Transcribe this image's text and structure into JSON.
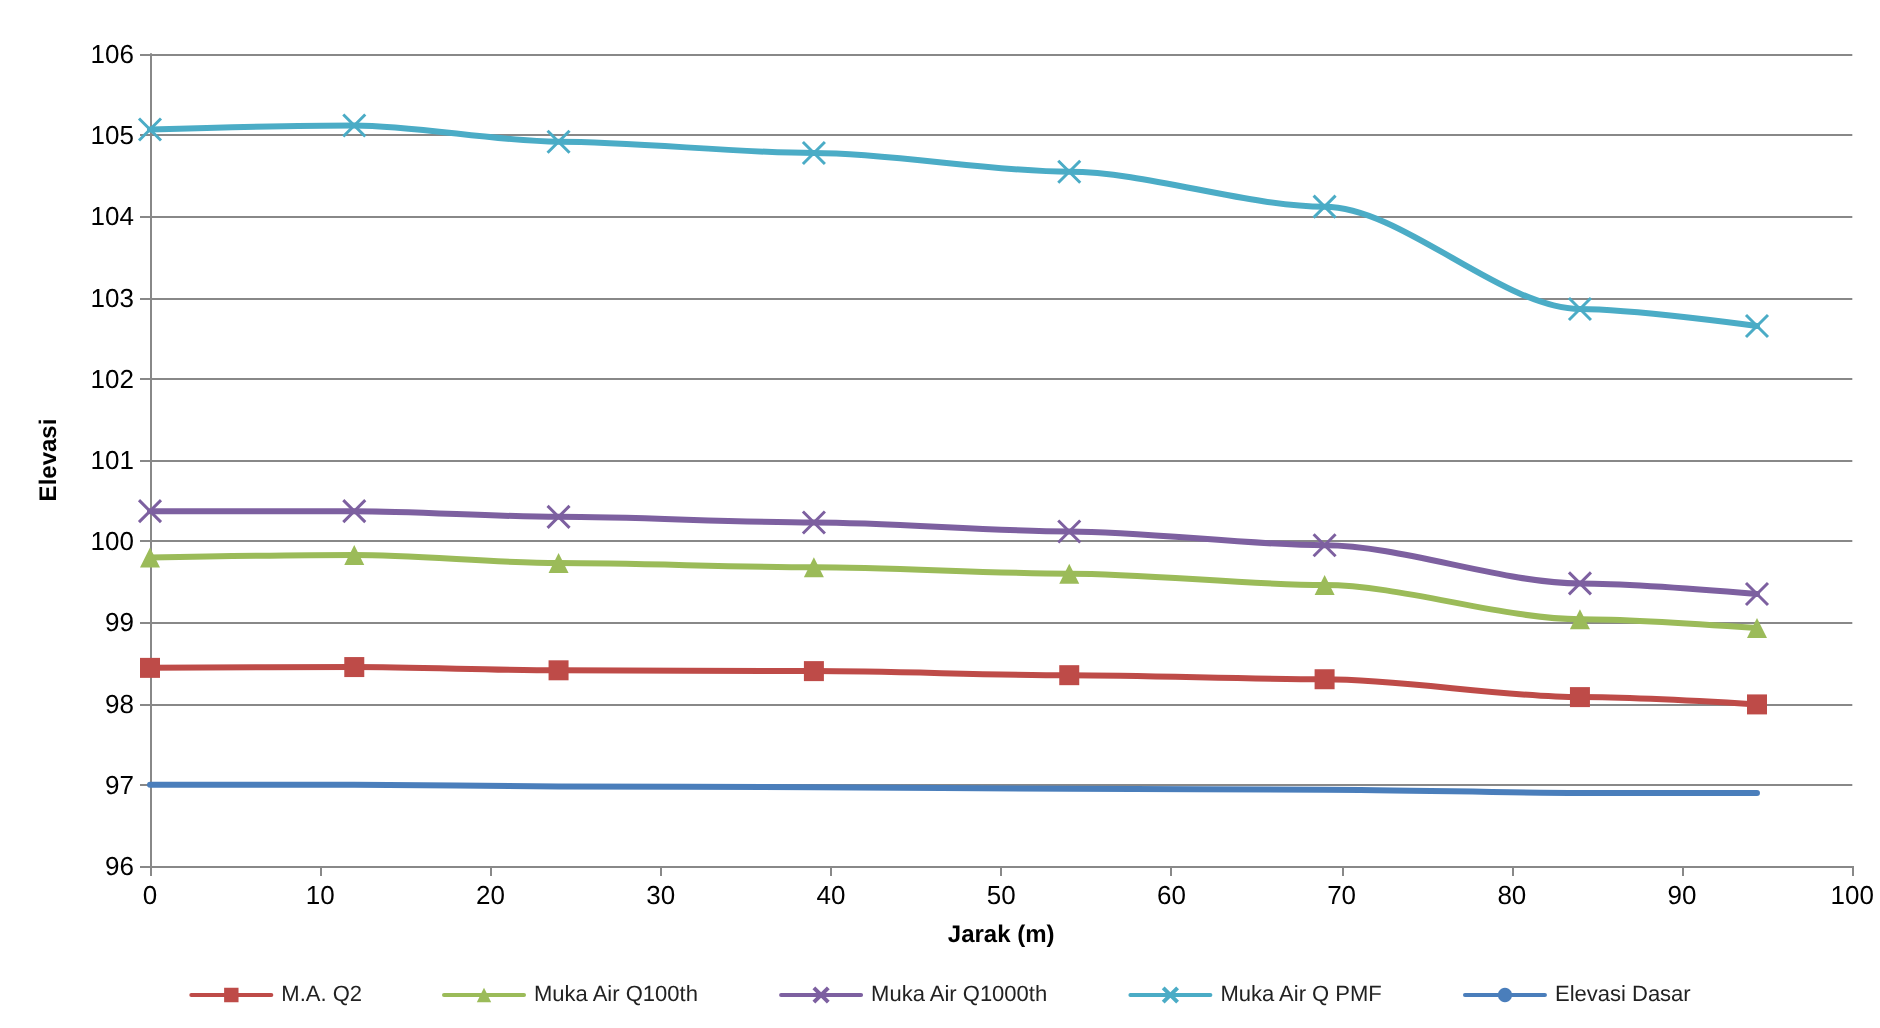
{
  "chart_data": {
    "type": "line",
    "xlabel": "Jarak (m)",
    "ylabel": "Elevasi",
    "x": [
      0,
      12,
      24,
      39,
      54,
      69,
      84,
      94.4
    ],
    "series": [
      {
        "name": "M.A. Q2",
        "color": "#be4b48",
        "marker": "square",
        "values": [
          98.44,
          98.45,
          98.41,
          98.4,
          98.35,
          98.3,
          98.08,
          97.99
        ]
      },
      {
        "name": "Muka Air Q100th",
        "color": "#9bbb59",
        "marker": "triangle",
        "values": [
          99.8,
          99.83,
          99.73,
          99.68,
          99.6,
          99.46,
          99.04,
          98.93
        ]
      },
      {
        "name": "Muka Air Q1000th",
        "color": "#7d60a0",
        "marker": "cross",
        "values": [
          100.37,
          100.37,
          100.3,
          100.23,
          100.12,
          99.95,
          99.48,
          99.35
        ]
      },
      {
        "name": "Muka Air Q PMF",
        "color": "#4bacc6",
        "marker": "cross",
        "values": [
          105.07,
          105.12,
          104.92,
          104.78,
          104.55,
          104.12,
          102.86,
          102.65
        ]
      },
      {
        "name": "Elevasi Dasar",
        "color": "#4a7ebb",
        "marker": "none",
        "values": [
          97.0,
          97.0,
          96.98,
          96.97,
          96.95,
          96.94,
          96.9,
          96.9
        ]
      }
    ],
    "xlim": [
      0,
      100
    ],
    "xticks": [
      0,
      10,
      20,
      30,
      40,
      50,
      60,
      70,
      80,
      90,
      100
    ],
    "ylim": [
      96,
      106
    ],
    "yticks": [
      96,
      97,
      98,
      99,
      100,
      101,
      102,
      103,
      104,
      105,
      106
    ],
    "grid": "y",
    "legend": "bottom",
    "line_style": "solid"
  }
}
